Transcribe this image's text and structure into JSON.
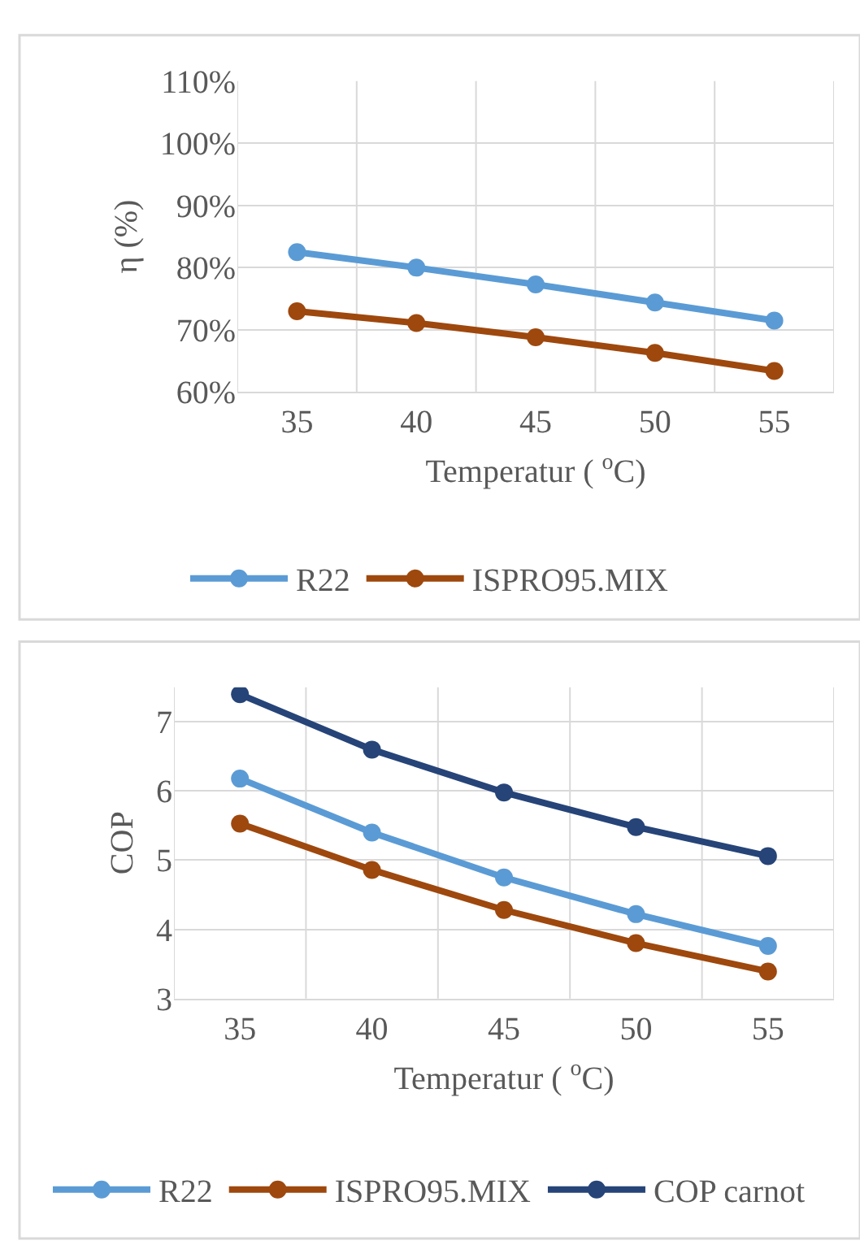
{
  "chart_data": [
    {
      "type": "line",
      "categories": [
        "35",
        "40",
        "45",
        "50",
        "55"
      ],
      "xlabel": "Temperatur ( $^{o}$C)",
      "ylabel": "η (%)",
      "series": [
        {
          "name": "R22",
          "color": "#5b9bd5",
          "values": [
            82.5,
            80.0,
            77.3,
            74.4,
            71.5
          ]
        },
        {
          "name": "ISPRO95.MIX",
          "color": "#9e480e",
          "values": [
            73.0,
            71.1,
            68.8,
            66.3,
            63.4
          ]
        }
      ],
      "ylim": [
        60,
        110
      ],
      "yticks": [
        {
          "value": 60,
          "label": "60%"
        },
        {
          "value": 70,
          "label": "70%"
        },
        {
          "value": 80,
          "label": "80%"
        },
        {
          "value": 90,
          "label": "90%"
        },
        {
          "value": 100,
          "label": "100%"
        },
        {
          "value": 110,
          "label": "110%"
        }
      ],
      "grid": true,
      "legend": "bottom",
      "marker": "circle",
      "line_style": "solid"
    },
    {
      "type": "line",
      "categories": [
        "35",
        "40",
        "45",
        "50",
        "55"
      ],
      "xlabel": "Temperatur ( $^{o}$C)",
      "ylabel": "COP",
      "series": [
        {
          "name": "R22",
          "color": "#5b9bd5",
          "values": [
            6.18,
            5.4,
            4.75,
            4.22,
            3.76
          ]
        },
        {
          "name": "ISPRO95.MIX",
          "color": "#9e480e",
          "values": [
            5.53,
            4.86,
            4.28,
            3.8,
            3.39
          ]
        },
        {
          "name": "COP carnot",
          "color": "#264478",
          "values": [
            7.4,
            6.6,
            5.98,
            5.48,
            5.06
          ]
        }
      ],
      "ylim": [
        3,
        7.5
      ],
      "yticks": [
        3,
        4,
        5,
        6,
        7
      ],
      "grid": true,
      "legend": "bottom",
      "marker": "circle",
      "line_style": "solid"
    }
  ]
}
